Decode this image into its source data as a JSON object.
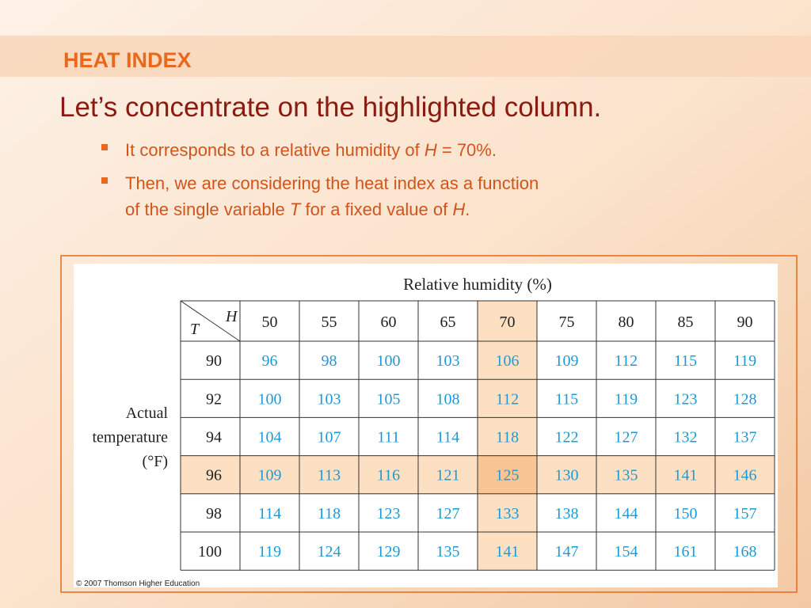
{
  "header": {
    "title": "HEAT INDEX"
  },
  "heading": "Let’s concentrate on the highlighted column.",
  "bullets": [
    [
      {
        "text": "It corresponds to a relative humidity of ",
        "italic": false
      },
      {
        "text": "H",
        "italic": true
      },
      {
        "text": " = 70%.",
        "italic": false
      }
    ],
    [
      {
        "text": "Then, we are considering the heat index as a function",
        "italic": false
      }
    ],
    [
      {
        "text": "of the single variable ",
        "italic": false
      },
      {
        "text": "T",
        "italic": true
      },
      {
        "text": " for a fixed value of ",
        "italic": false
      },
      {
        "text": "H",
        "italic": true
      },
      {
        "text": ".",
        "italic": false
      }
    ]
  ],
  "table": {
    "column_header": "Relative humidity (%)",
    "corner": {
      "column": "H",
      "row": "T"
    },
    "row_header": [
      "Actual",
      "temperature",
      "(°F)"
    ],
    "humidity": [
      50,
      55,
      60,
      65,
      70,
      75,
      80,
      85,
      90
    ],
    "highlight_humidity": 70,
    "highlight_temperature": 96,
    "rows": [
      {
        "temperature": 90,
        "values": [
          96,
          98,
          100,
          103,
          106,
          109,
          112,
          115,
          119
        ]
      },
      {
        "temperature": 92,
        "values": [
          100,
          103,
          105,
          108,
          112,
          115,
          119,
          123,
          128
        ]
      },
      {
        "temperature": 94,
        "values": [
          104,
          107,
          111,
          114,
          118,
          122,
          127,
          132,
          137
        ]
      },
      {
        "temperature": 96,
        "values": [
          109,
          113,
          116,
          121,
          125,
          130,
          135,
          141,
          146
        ]
      },
      {
        "temperature": 98,
        "values": [
          114,
          118,
          123,
          127,
          133,
          138,
          144,
          150,
          157
        ]
      },
      {
        "temperature": 100,
        "values": [
          119,
          124,
          129,
          135,
          141,
          147,
          154,
          161,
          168
        ]
      }
    ],
    "credit": "© 2007 Thomson Higher Education"
  }
}
